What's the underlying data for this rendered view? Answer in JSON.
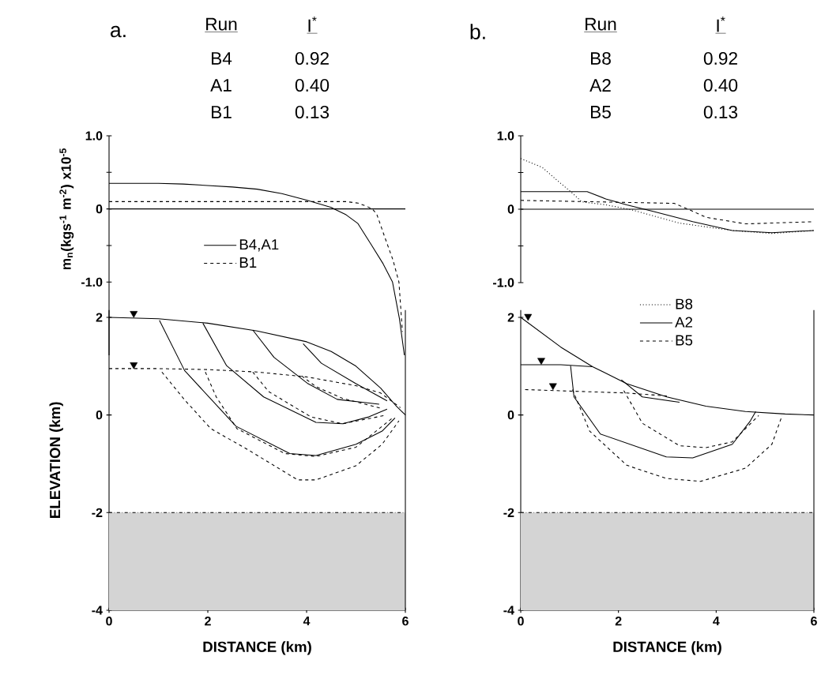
{
  "chart_data": [
    {
      "type": "line",
      "title": "a.",
      "ylabel": "m$_{n}$(kgs$^{-1}$ m$^{-2}$) x10$^{-5}$",
      "xlim": [
        0,
        6
      ],
      "ylim": [
        -2.0,
        1.0
      ],
      "yticks": [
        {
          "value": 1.0,
          "label": "1.0"
        },
        {
          "value": 0.5,
          "label": null
        },
        0,
        {
          "value": -0.5,
          "label": null
        },
        {
          "value": -1.0,
          "label": "-1.0"
        }
      ],
      "tick_labels": "y",
      "legend": "center",
      "annotations": [
        "Run",
        "I$^{*}$",
        "B4",
        "0.92",
        "A1",
        "0.40",
        "B1",
        "0.13"
      ],
      "ref_lines": [
        {
          "axis": "y",
          "value": 0
        }
      ],
      "series": [
        {
          "name": "B4,A1",
          "line_style": "solid",
          "x": [
            0,
            1,
            1.5,
            2,
            2.5,
            3,
            3.5,
            4,
            4.5,
            4.56,
            4.8,
            5.04,
            5.31,
            5.55,
            5.74,
            5.88,
            5.98
          ],
          "values": [
            0.35,
            0.35,
            0.34,
            0.32,
            0.3,
            0.27,
            0.21,
            0.12,
            0.02,
            0,
            -0.08,
            -0.2,
            -0.49,
            -0.75,
            -1.0,
            -1.5,
            -2.0
          ]
        },
        {
          "name": "B1",
          "line_style": "dashed",
          "x": [
            0,
            1,
            2,
            3,
            4,
            4.5,
            4.8,
            5.04,
            5.2,
            5.33,
            5.42,
            5.58,
            5.75,
            5.87,
            5.94
          ],
          "values": [
            0.1,
            0.1,
            0.1,
            0.1,
            0.1,
            0.1,
            0.1,
            0.08,
            0.04,
            0,
            -0.07,
            -0.38,
            -0.7,
            -1.0,
            -1.68
          ]
        }
      ]
    },
    {
      "type": "line",
      "xlabel": "DISTANCE (km)",
      "ylabel": "ELEVATION (km)",
      "xlim": [
        0,
        6
      ],
      "ylim": [
        -4,
        2.15
      ],
      "xticks": [
        0,
        2,
        4,
        6
      ],
      "yticks": [
        2,
        0,
        -2,
        -4
      ],
      "bands": [
        {
          "axis": "y",
          "from": -4,
          "to": -2,
          "color": "#d4d4d4"
        }
      ],
      "ref_lines": [
        {
          "axis": "y",
          "value": -2,
          "line_style": "dashdot"
        },
        {
          "axis": "x",
          "value": 6
        }
      ],
      "series": [
        {
          "line_style": "solid",
          "x": [
            0,
            1,
            2,
            3,
            4,
            4.5,
            5,
            5.5,
            5.8,
            6
          ],
          "values": [
            2.0,
            1.97,
            1.88,
            1.72,
            1.5,
            1.3,
            1.0,
            0.55,
            0.2,
            0.0
          ]
        },
        {
          "line_style": "dashed",
          "x": [
            0,
            1,
            2,
            3,
            4,
            5,
            5.5,
            5.9
          ],
          "values": [
            0.95,
            0.95,
            0.93,
            0.88,
            0.78,
            0.6,
            0.45,
            0.15
          ]
        },
        {
          "type": "scatter",
          "marker": "triangle",
          "x": [
            0.5,
            0.5
          ],
          "values": [
            2.08,
            1.03
          ]
        },
        {
          "line_style": "solid",
          "x": [
            1.02,
            1.53,
            2.57,
            3.66,
            4.19,
            5.0,
            5.53,
            5.79
          ],
          "values": [
            1.94,
            0.91,
            -0.23,
            -0.79,
            -0.83,
            -0.6,
            -0.33,
            -0.06
          ]
        },
        {
          "line_style": "dashed",
          "x": [
            1.07,
            1.53,
            2.06,
            2.81,
            3.82,
            4.19,
            5.0,
            5.53,
            5.87
          ],
          "values": [
            0.88,
            0.31,
            -0.28,
            -0.71,
            -1.33,
            -1.33,
            -1.04,
            -0.6,
            -0.12
          ]
        },
        {
          "line_style": "dashed",
          "x": [
            1.95,
            2.17,
            2.59,
            3.56,
            4.19,
            5.0,
            5.74
          ],
          "values": [
            0.88,
            0.37,
            -0.28,
            -0.79,
            -0.85,
            -0.66,
            -0.06
          ]
        },
        {
          "line_style": "solid",
          "x": [
            1.9,
            2.38,
            3.13,
            4.19,
            4.73,
            5.26,
            5.63
          ],
          "values": [
            1.88,
            1.01,
            0.37,
            -0.15,
            -0.18,
            -0.04,
            0.12
          ]
        },
        {
          "line_style": "dashed",
          "x": [
            2.91,
            3.23,
            4.09,
            4.73,
            5.58
          ],
          "values": [
            0.88,
            0.48,
            -0.04,
            -0.18,
            -0.01
          ]
        },
        {
          "line_style": "solid",
          "x": [
            2.91,
            3.34,
            4.03,
            4.62,
            5.47
          ],
          "values": [
            1.74,
            1.18,
            0.64,
            0.32,
            0.22
          ]
        },
        {
          "line_style": "dashed",
          "x": [
            3.9,
            4.19,
            4.73,
            5.53
          ],
          "values": [
            0.8,
            0.58,
            0.34,
            0.13
          ]
        },
        {
          "line_style": "solid",
          "x": [
            3.93,
            4.3,
            5.0,
            5.63
          ],
          "values": [
            1.46,
            1.06,
            0.64,
            0.29
          ]
        }
      ]
    },
    {
      "type": "line",
      "title": "b.",
      "xlim": [
        0,
        6
      ],
      "ylim": [
        -1.0,
        1.0
      ],
      "yticks": [
        {
          "value": 1.0,
          "label": "1.0"
        },
        {
          "value": 0.5,
          "label": null
        },
        0,
        {
          "value": -0.5,
          "label": null
        },
        {
          "value": -1.0,
          "label": "-1.0"
        }
      ],
      "tick_labels": "y",
      "legend": "bottom",
      "annotations": [
        "Run",
        "I$^{*}$",
        "B8",
        "0.92",
        "A2",
        "0.40",
        "B5",
        "0.13"
      ],
      "ref_lines": [
        {
          "axis": "y",
          "value": 0
        }
      ],
      "series": [
        {
          "name": "B8",
          "line_style": "dotted",
          "x": [
            0,
            0.44,
            0.82,
            1.04,
            1.25,
            1.74,
            2.28,
            3.25,
            4.33,
            5.14,
            6
          ],
          "values": [
            0.69,
            0.57,
            0.35,
            0.23,
            0.1,
            0.06,
            -0.01,
            -0.19,
            -0.29,
            -0.33,
            -0.29
          ]
        },
        {
          "name": "A2",
          "line_style": "solid",
          "x": [
            0,
            1.36,
            1.74,
            2.17,
            2.71,
            3.52,
            4.33,
            5.14,
            6
          ],
          "values": [
            0.24,
            0.24,
            0.14,
            0.06,
            -0.03,
            -0.17,
            -0.29,
            -0.32,
            -0.29
          ]
        },
        {
          "name": "B5",
          "line_style": "dashed",
          "x": [
            0,
            3.14,
            3.46,
            3.79,
            4.6,
            6
          ],
          "values": [
            0.12,
            0.08,
            -0.01,
            -0.11,
            -0.2,
            -0.17
          ]
        }
      ]
    },
    {
      "type": "line",
      "xlabel": "DISTANCE (km)",
      "xlim": [
        0,
        6
      ],
      "ylim": [
        -4,
        2.15
      ],
      "xticks": [
        0,
        2,
        4,
        6
      ],
      "yticks": [
        2,
        0,
        -2,
        -4
      ],
      "bands": [
        {
          "axis": "y",
          "from": -4,
          "to": -2,
          "color": "#d4d4d4"
        }
      ],
      "ref_lines": [
        {
          "axis": "y",
          "value": -2,
          "line_style": "dashdot"
        },
        {
          "axis": "x",
          "value": 6
        }
      ],
      "series": [
        {
          "line_style": "solid",
          "x": [
            0,
            0.82,
            1.47,
            2.17,
            2.99,
            3.79,
            4.6,
            5.41,
            6.0
          ],
          "values": [
            2.0,
            1.39,
            0.99,
            0.64,
            0.37,
            0.18,
            0.07,
            0.02,
            0.0
          ]
        },
        {
          "line_style": "solid",
          "x": [
            0,
            0.82,
            1.47
          ],
          "values": [
            1.03,
            1.03,
            0.99
          ]
        },
        {
          "line_style": "dashed",
          "x": [
            0.09,
            2.17,
            2.99
          ],
          "values": [
            0.52,
            0.45,
            0.39
          ]
        },
        {
          "type": "scatter",
          "marker": "triangle",
          "x": [
            0.15,
            0.42,
            0.66
          ],
          "values": [
            2.02,
            1.12,
            0.6
          ]
        },
        {
          "line_style": "solid",
          "x": [
            1.02,
            1.09,
            1.63,
            2.98,
            3.52,
            4.33,
            4.7,
            4.81
          ],
          "values": [
            1.01,
            0.37,
            -0.39,
            -0.86,
            -0.88,
            -0.6,
            -0.12,
            0.07
          ]
        },
        {
          "line_style": "dashed",
          "x": [
            1.06,
            1.41,
            2.17,
            2.98,
            3.68,
            4.6,
            5.14,
            5.35
          ],
          "values": [
            0.52,
            -0.33,
            -1.03,
            -1.3,
            -1.36,
            -1.09,
            -0.6,
            -0.01
          ]
        },
        {
          "line_style": "solid",
          "x": [
            2.06,
            2.49,
            3.25
          ],
          "values": [
            0.72,
            0.37,
            0.26
          ]
        },
        {
          "line_style": "dashed",
          "x": [
            2.11,
            2.49,
            3.25,
            3.79,
            4.33,
            4.87
          ],
          "values": [
            0.5,
            -0.17,
            -0.63,
            -0.67,
            -0.55,
            -0.01
          ]
        }
      ]
    }
  ]
}
